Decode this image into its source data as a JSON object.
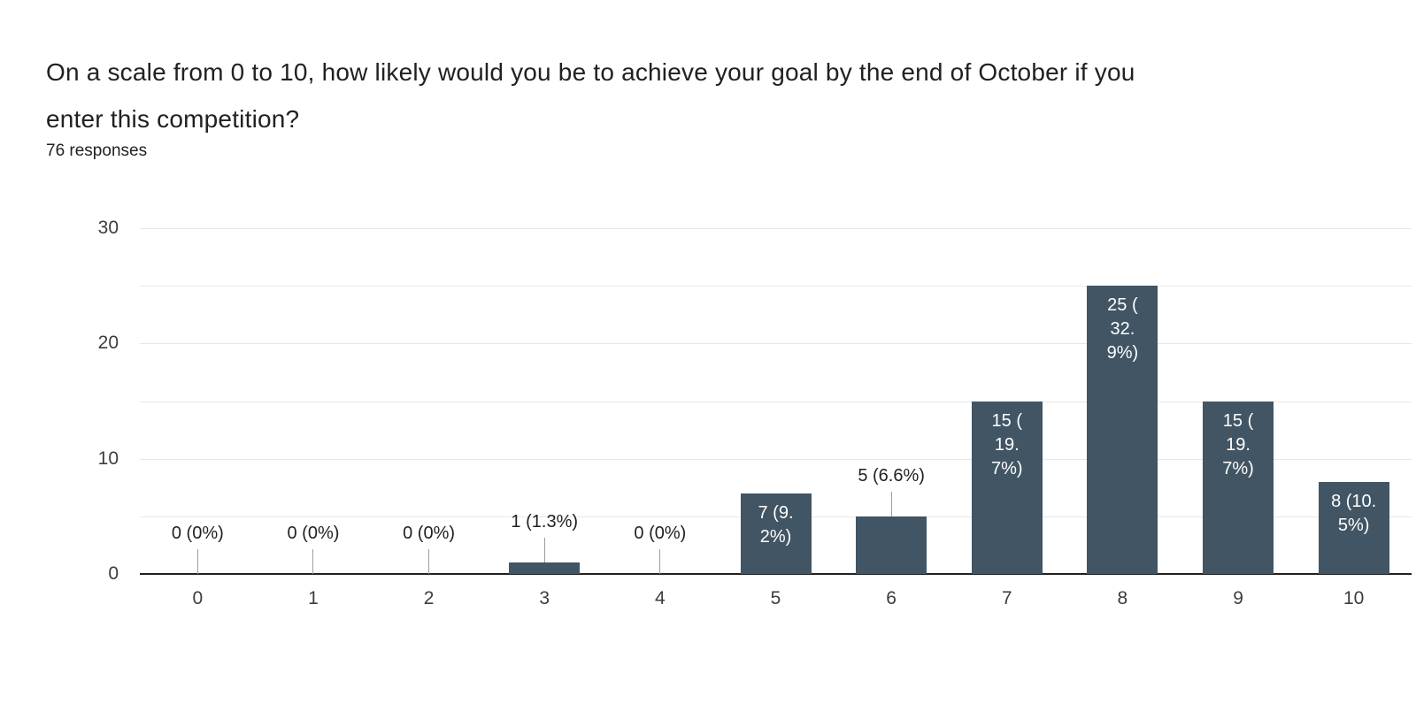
{
  "header": {
    "title_lines": [
      "On a scale from 0 to 10, how likely would you be to achieve your goal by the end of October if you",
      "enter this competition?"
    ],
    "responses": "76 responses"
  },
  "colors": {
    "bar": "#415564",
    "gridline": "#e8e8e8",
    "baseline": "#212121",
    "leader_line": "#9e9e9e",
    "axis_label": "#3c3c3c",
    "annotation_outside": "#212121",
    "annotation_inside": "#ffffff"
  },
  "chart_data": {
    "type": "bar",
    "title": "On a scale from 0 to 10, how likely would you be to achieve your goal by the end of October if you enter this competition?",
    "subtitle": "76 responses",
    "categories": [
      "0",
      "1",
      "2",
      "3",
      "4",
      "5",
      "6",
      "7",
      "8",
      "9",
      "10"
    ],
    "values": [
      0,
      0,
      0,
      1,
      0,
      7,
      5,
      15,
      25,
      15,
      8
    ],
    "percentages": [
      "0%",
      "0%",
      "0%",
      "1.3%",
      "0%",
      "9.2%",
      "6.6%",
      "19.7%",
      "32.9%",
      "19.7%",
      "10.5%"
    ],
    "xlabel": "",
    "ylabel": "",
    "ylim": [
      0,
      30
    ],
    "y_ticks": [
      0,
      10,
      20,
      30
    ],
    "grid_step": 5,
    "grid": true,
    "legend": "none",
    "bars": [
      {
        "category": "0",
        "value": 0,
        "label": "0 (0%)",
        "label_lines": [
          "0 (0%)"
        ],
        "placement": "above"
      },
      {
        "category": "1",
        "value": 0,
        "label": "0 (0%)",
        "label_lines": [
          "0 (0%)"
        ],
        "placement": "above"
      },
      {
        "category": "2",
        "value": 0,
        "label": "0 (0%)",
        "label_lines": [
          "0 (0%)"
        ],
        "placement": "above"
      },
      {
        "category": "3",
        "value": 1,
        "label": "1 (1.3%)",
        "label_lines": [
          "1 (1.3%)"
        ],
        "placement": "above"
      },
      {
        "category": "4",
        "value": 0,
        "label": "0 (0%)",
        "label_lines": [
          "0 (0%)"
        ],
        "placement": "above"
      },
      {
        "category": "5",
        "value": 7,
        "label": "7 (9.2%)",
        "label_lines": [
          "7 (9.",
          "2%)"
        ],
        "placement": "inside"
      },
      {
        "category": "6",
        "value": 5,
        "label": "5 (6.6%)",
        "label_lines": [
          "5 (6.6%)"
        ],
        "placement": "above"
      },
      {
        "category": "7",
        "value": 15,
        "label": "15 (19.7%)",
        "label_lines": [
          "15 (",
          "19.",
          "7%)"
        ],
        "placement": "inside"
      },
      {
        "category": "8",
        "value": 25,
        "label": "25 (32.9%)",
        "label_lines": [
          "25 (",
          "32.",
          "9%)"
        ],
        "placement": "inside"
      },
      {
        "category": "9",
        "value": 15,
        "label": "15 (19.7%)",
        "label_lines": [
          "15 (",
          "19.",
          "7%)"
        ],
        "placement": "inside"
      },
      {
        "category": "10",
        "value": 8,
        "label": "8 (10.5%)",
        "label_lines": [
          "8 (10.",
          "5%)"
        ],
        "placement": "inside"
      }
    ]
  }
}
